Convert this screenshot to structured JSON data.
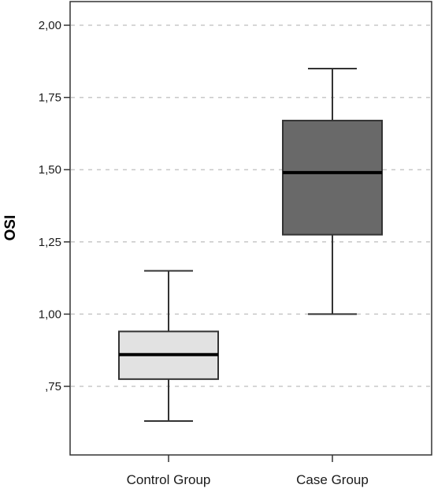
{
  "chart_data": {
    "type": "box",
    "ylabel": "OSI",
    "xlabel": "",
    "ylim": [
      0.55,
      2.05
    ],
    "grid": true,
    "y_ticks": [
      {
        "value": 0.75,
        "label": ",75"
      },
      {
        "value": 1.0,
        "label": "1,00"
      },
      {
        "value": 1.25,
        "label": "1,25"
      },
      {
        "value": 1.5,
        "label": "1,50"
      },
      {
        "value": 1.75,
        "label": "1,75"
      },
      {
        "value": 2.0,
        "label": "2,00"
      }
    ],
    "categories": [
      "Control Group",
      "Case Group"
    ],
    "boxes": [
      {
        "category": "Control Group",
        "min": 0.63,
        "q1": 0.775,
        "median": 0.86,
        "q3": 0.94,
        "max": 1.15,
        "fill": "#e2e2e2"
      },
      {
        "category": "Case Group",
        "min": 1.0,
        "q1": 1.275,
        "median": 1.49,
        "q3": 1.67,
        "max": 1.85,
        "fill": "#696969"
      }
    ]
  }
}
